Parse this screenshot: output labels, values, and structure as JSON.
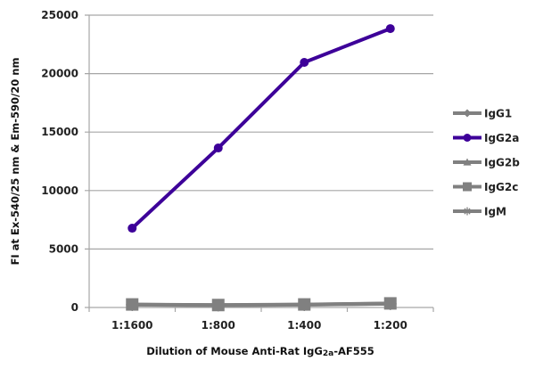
{
  "chart_data": {
    "type": "line",
    "title": "",
    "xlabel": "Dilution of Mouse Anti-Rat IgG2a-AF555",
    "xlabel_parts": {
      "pre": "Dilution of Mouse Anti-Rat IgG",
      "sub": "2a",
      "post": "-AF555"
    },
    "ylabel": "FI at Ex-540/25 nm & Em-590/20 nm",
    "categories": [
      "1:1600",
      "1:800",
      "1:400",
      "1:200"
    ],
    "ylim": [
      0,
      25000
    ],
    "yticks": [
      0,
      5000,
      10000,
      15000,
      20000,
      25000
    ],
    "grid": true,
    "legend_position": "right",
    "series": [
      {
        "name": "IgG1",
        "color": "#808080",
        "marker": "diamond",
        "values": [
          250,
          200,
          250,
          330
        ]
      },
      {
        "name": "IgG2a",
        "color": "#3d0099",
        "marker": "circle",
        "values": [
          6780,
          13640,
          20960,
          23850
        ]
      },
      {
        "name": "IgG2b",
        "color": "#808080",
        "marker": "triangle",
        "values": [
          240,
          200,
          240,
          320
        ]
      },
      {
        "name": "IgG2c",
        "color": "#808080",
        "marker": "square",
        "values": [
          260,
          210,
          260,
          350
        ]
      },
      {
        "name": "IgM",
        "color": "#808080",
        "marker": "star",
        "values": [
          230,
          190,
          230,
          310
        ]
      }
    ]
  }
}
